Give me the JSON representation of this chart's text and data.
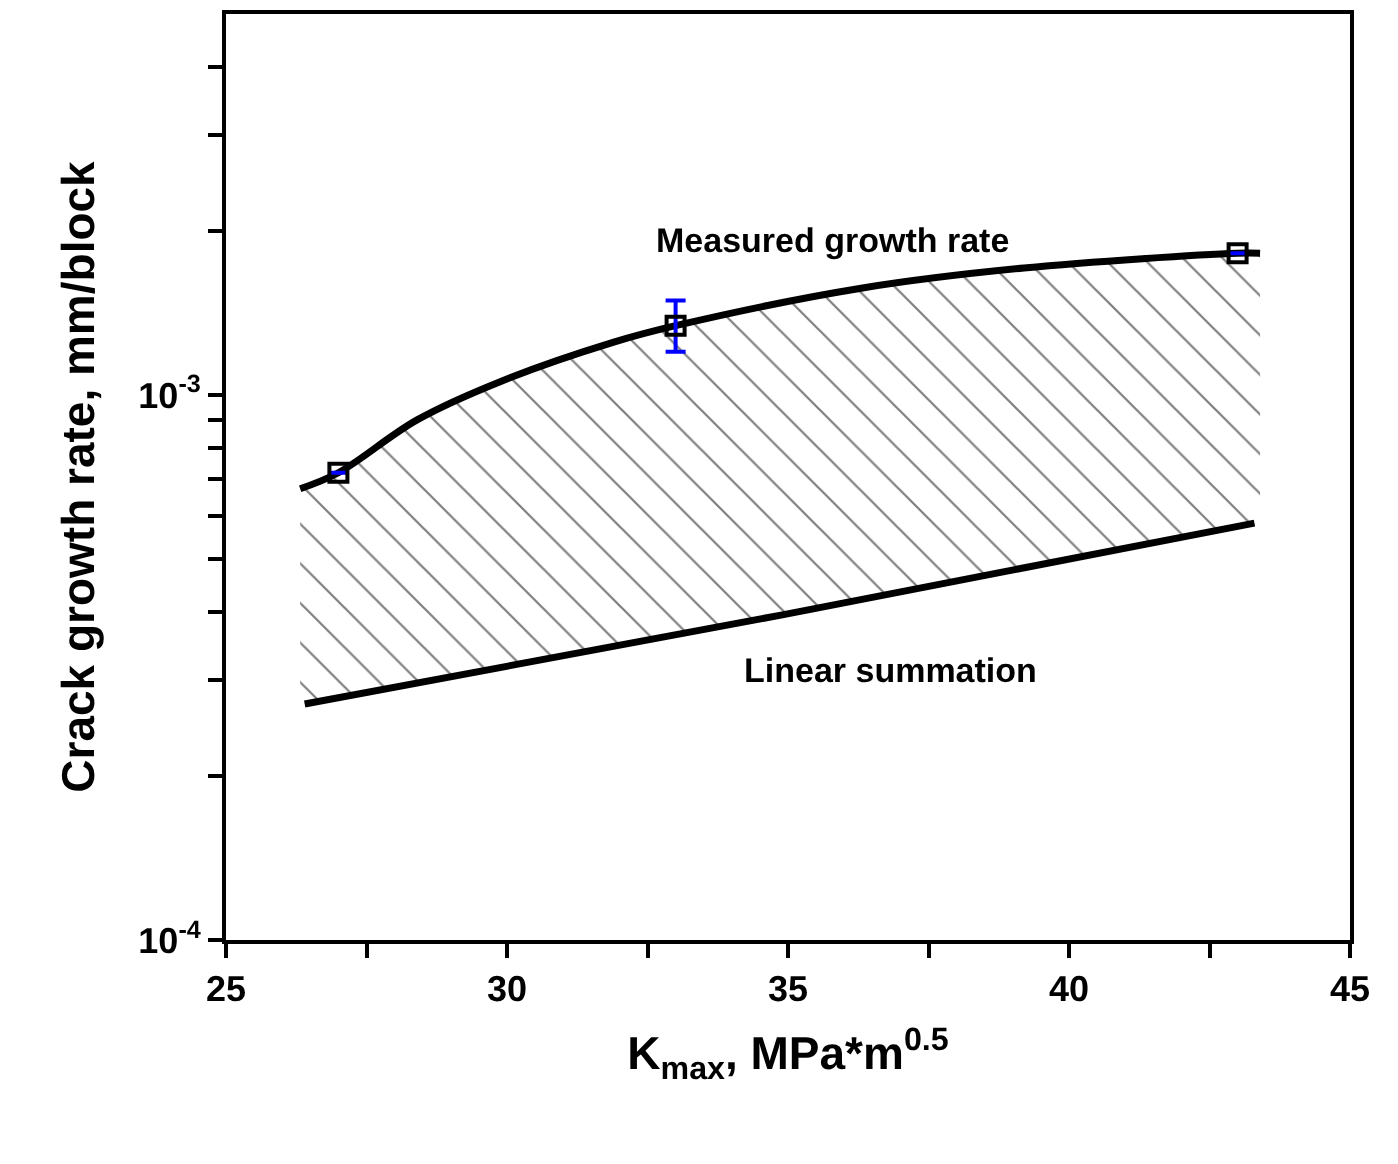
{
  "chart_data": {
    "type": "line",
    "xlabel": "K$_{max}$, MPa*m$^{0.5}$",
    "ylabel": "Crack growth rate, mm/block",
    "log": "y",
    "xlim": [
      25,
      45
    ],
    "xticks": [
      25,
      {
        "value": 27.5,
        "label": null
      },
      30,
      {
        "value": 32.5,
        "label": null
      },
      35,
      {
        "value": 37.5,
        "label": null
      },
      40,
      {
        "value": 42.5,
        "label": null
      },
      45
    ],
    "ylim": [
      0.0001,
      0.005
    ],
    "yticks": [
      {
        "value": 0.0001,
        "label": "10$^{-4}$"
      },
      {
        "value": 0.0002,
        "label": null
      },
      {
        "value": 0.0003,
        "label": null
      },
      {
        "value": 0.0004,
        "label": null
      },
      {
        "value": 0.0005,
        "label": null
      },
      {
        "value": 0.0006,
        "label": null
      },
      {
        "value": 0.0007,
        "label": null
      },
      {
        "value": 0.0008,
        "label": null
      },
      {
        "value": 0.0009,
        "label": null
      },
      {
        "value": 0.001,
        "label": "10$^{-3}$"
      },
      {
        "value": 0.002,
        "label": null
      },
      {
        "value": 0.003,
        "label": null
      },
      {
        "value": 0.004,
        "label": null
      }
    ],
    "series": [
      {
        "color": "#000000",
        "line_style": "solid",
        "x": [
          26.32,
          27.0,
          28.4,
          29.9,
          31.9,
          33.0,
          36.3,
          39.2,
          43.0,
          43.4
        ],
        "values": [
          0.000673,
          0.00072,
          0.0009,
          0.00106,
          0.00125,
          0.00134,
          0.00157,
          0.00171,
          0.00182,
          0.00182
        ],
        "lower": [
          0.00027,
          0.000279,
          0.000297,
          0.000318,
          0.000348,
          0.000365,
          0.000425,
          0.000483,
          0.000574,
          0.000585
        ],
        "upper": [
          0.000673,
          0.00072,
          0.0009,
          0.00106,
          0.00125,
          0.00134,
          0.00157,
          0.00171,
          0.00182,
          0.00182
        ]
      },
      {
        "color": "#000000",
        "line_style": "solid",
        "x": [
          26.4,
          34.9,
          43.3
        ],
        "values": [
          0.000271,
          0.000395,
          0.000582
        ]
      },
      {
        "type": "scatter",
        "color": "#000000",
        "marker": "square",
        "x": [
          27,
          33,
          43
        ],
        "values": [
          0.00072,
          0.00134,
          0.00182
        ],
        "errors": [
          null,
          [
            0.0012,
            0.00149
          ],
          null
        ]
      }
    ],
    "annotations": [
      "Measured growth rate",
      "Linear summation"
    ]
  }
}
